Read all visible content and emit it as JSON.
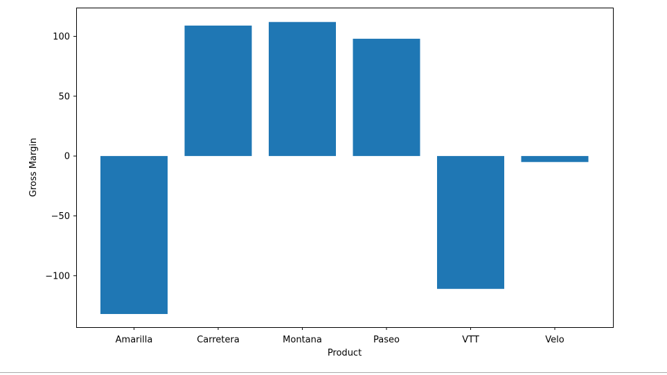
{
  "colors": {
    "bar": "#1f77b4",
    "axis": "#000000",
    "divider": "#aaaaaa"
  },
  "chart_data": {
    "type": "bar",
    "title": "",
    "xlabel": "Product",
    "ylabel": "Gross Margin",
    "categories": [
      "Amarilla",
      "Carretera",
      "Montana",
      "Paseo",
      "VTT",
      "Velo"
    ],
    "values": [
      -132,
      109,
      112,
      98,
      -111,
      -5
    ],
    "ylim": [
      -143,
      124
    ],
    "yticks": [
      -100,
      -50,
      0,
      50,
      100
    ],
    "ytick_labels": [
      "−100",
      "−50",
      "0",
      "50",
      "100"
    ],
    "grid": false,
    "legend": "none"
  }
}
